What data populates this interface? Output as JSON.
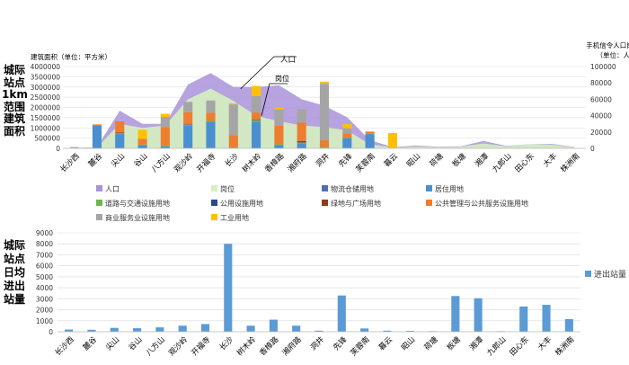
{
  "side_titles": {
    "top": [
      "城际",
      "站点",
      "1km",
      "范围",
      "建筑",
      "面积"
    ],
    "bottom": [
      "城际",
      "站点",
      "日均",
      "进出",
      "站量"
    ]
  },
  "stations": [
    "长沙西",
    "麓谷",
    "尖山",
    "谷山",
    "八方山",
    "观沙岭",
    "开福寺",
    "长沙",
    "树木岭",
    "香樟路",
    "湘府路",
    "洞井",
    "先锋",
    "芙蓉南",
    "暮云",
    "昭山",
    "荷塘",
    "板塘",
    "湘潭",
    "九郎山",
    "田心东",
    "大丰",
    "株洲南"
  ],
  "chart_data": [
    {
      "type": "bar",
      "subtype": "stacked bar with area overlays (dual axis)",
      "ylabel": "建筑面积（单位：平方米）",
      "y2label": [
        "手机信令人口岗位数",
        "（单位：人）"
      ],
      "ylim": [
        0,
        4000000
      ],
      "yticks": [
        "0",
        "500000",
        "1000000",
        "1500000",
        "2000000",
        "2500000",
        "3000000",
        "3500000",
        "4000000"
      ],
      "y2lim": [
        0,
        100000
      ],
      "y2ticks": [
        "0",
        "20000",
        "40000",
        "60000",
        "80000",
        "100000"
      ],
      "categories": [
        "长沙西",
        "麓谷",
        "尖山",
        "谷山",
        "八方山",
        "观沙岭",
        "开福寺",
        "长沙",
        "树木岭",
        "香樟路",
        "湘府路",
        "洞井",
        "先锋",
        "芙蓉南",
        "暮云",
        "昭山",
        "荷塘",
        "板塘",
        "湘潭",
        "九郎山",
        "田心东",
        "大丰",
        "株洲南"
      ],
      "annotations": [
        "人口",
        "岗位"
      ],
      "legend_placement": "bottom",
      "area_series": [
        {
          "name": "人口",
          "color": "#a993d9",
          "axis": "right",
          "values": [
            500,
            1500,
            46000,
            30000,
            30000,
            78000,
            92000,
            75000,
            75000,
            77000,
            60000,
            52000,
            38000,
            10000,
            1500,
            3500,
            2000,
            2500,
            9000,
            3000,
            5000,
            5500,
            1500
          ]
        },
        {
          "name": "岗位",
          "color": "#d5f0c0",
          "axis": "right",
          "values": [
            300,
            1000,
            30000,
            25000,
            28000,
            60000,
            73000,
            58000,
            40000,
            33000,
            28000,
            26000,
            22000,
            5000,
            1000,
            2000,
            1500,
            2000,
            6000,
            2500,
            5000,
            4500,
            1000
          ]
        }
      ],
      "bar_series": [
        {
          "name": "物流仓储用地",
          "color": "#4f6fb3",
          "values": [
            0,
            0,
            0,
            0,
            0,
            0,
            0,
            0,
            0,
            0,
            50000,
            0,
            0,
            0,
            0,
            0,
            0,
            0,
            0,
            0,
            0,
            0,
            0
          ]
        },
        {
          "name": "居住用地",
          "color": "#4a8fd0",
          "values": [
            0,
            1100000,
            700000,
            150000,
            100000,
            1100000,
            1300000,
            0,
            1300000,
            150000,
            200000,
            0,
            500000,
            700000,
            0,
            0,
            0,
            0,
            0,
            0,
            0,
            0,
            0
          ]
        },
        {
          "name": "道路与交通设施用地",
          "color": "#71b34e",
          "values": [
            0,
            20000,
            40000,
            30000,
            40000,
            50000,
            40000,
            50000,
            70000,
            50000,
            30000,
            60000,
            30000,
            20000,
            0,
            0,
            0,
            0,
            0,
            0,
            0,
            0,
            0
          ]
        },
        {
          "name": "公用设施用地",
          "color": "#2b4a8c",
          "values": [
            0,
            0,
            0,
            0,
            0,
            20000,
            0,
            0,
            30000,
            0,
            20000,
            0,
            0,
            0,
            0,
            0,
            0,
            0,
            0,
            0,
            0,
            0,
            0
          ]
        },
        {
          "name": "绿地与广场用地",
          "color": "#8a3c1c",
          "values": [
            0,
            0,
            30000,
            0,
            0,
            0,
            0,
            0,
            0,
            0,
            60000,
            0,
            0,
            0,
            0,
            0,
            0,
            0,
            0,
            0,
            0,
            0,
            0
          ]
        },
        {
          "name": "公共管理与公共服务设施用地",
          "color": "#ed7d31",
          "values": [
            0,
            50000,
            550000,
            280000,
            900000,
            600000,
            400000,
            600000,
            350000,
            900000,
            900000,
            350000,
            200000,
            100000,
            0,
            0,
            0,
            0,
            0,
            0,
            0,
            0,
            0
          ]
        },
        {
          "name": "商业服务业设施用地",
          "color": "#a5a5a5",
          "values": [
            60000,
            0,
            0,
            0,
            500000,
            500000,
            600000,
            1500000,
            800000,
            800000,
            650000,
            2750000,
            250000,
            0,
            0,
            0,
            0,
            0,
            0,
            0,
            0,
            0,
            0
          ]
        },
        {
          "name": "工业用地",
          "color": "#ffc000",
          "values": [
            0,
            0,
            0,
            450000,
            150000,
            0,
            0,
            50000,
            500000,
            100000,
            0,
            100000,
            200000,
            0,
            750000,
            0,
            0,
            0,
            0,
            0,
            0,
            0,
            0
          ]
        }
      ]
    },
    {
      "type": "bar",
      "ylim": [
        0,
        9000
      ],
      "yticks": [
        "0",
        "1000",
        "2000",
        "3000",
        "4000",
        "5000",
        "6000",
        "7000",
        "8000",
        "9000"
      ],
      "categories": [
        "长沙西",
        "麓谷",
        "尖山",
        "谷山",
        "八方山",
        "观沙岭",
        "开福寺",
        "长沙",
        "树木岭",
        "香樟路",
        "湘府路",
        "洞井",
        "先锋",
        "芙蓉南",
        "暮云",
        "昭山",
        "荷塘",
        "板塘",
        "湘潭",
        "九郎山",
        "田心东",
        "大丰",
        "株洲南"
      ],
      "legend_placement": "right",
      "series": [
        {
          "name": "进出站量",
          "color": "#5b9bd5",
          "values": [
            200,
            180,
            350,
            320,
            400,
            550,
            700,
            8000,
            550,
            1100,
            550,
            100,
            3300,
            300,
            100,
            80,
            50,
            3250,
            3050,
            50,
            2300,
            2450,
            1150
          ]
        }
      ]
    }
  ]
}
